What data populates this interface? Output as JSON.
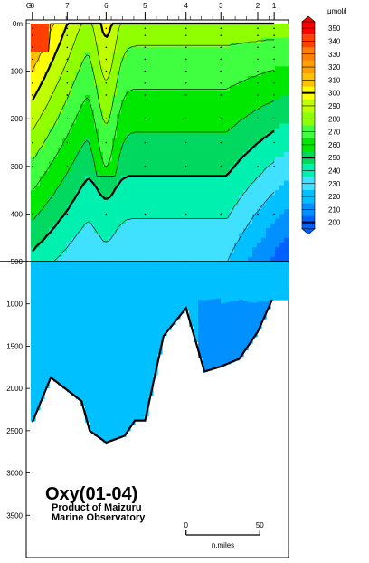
{
  "chart_data": {
    "type": "heatmap",
    "title": "Oxy(01-04)",
    "subtitle_line1": "Product of Maizuru",
    "subtitle_line2": "Marine Observatory",
    "station_axis_label": "G",
    "stations": [
      "8",
      "7",
      "6",
      "5",
      "4",
      "3",
      "2",
      "1"
    ],
    "station_km": [
      0,
      17,
      36,
      55,
      75,
      92,
      110,
      118
    ],
    "km_range": [
      -3,
      125
    ],
    "depth_axis_upper": {
      "range": [
        0,
        500
      ],
      "ticks": [
        0,
        100,
        200,
        300,
        400,
        500
      ],
      "tick_labels": [
        "0m",
        "100",
        "200",
        "300",
        "400",
        "500"
      ]
    },
    "depth_axis_lower": {
      "range": [
        500,
        4000
      ],
      "ticks": [
        1000,
        1500,
        2000,
        2500,
        3000,
        3500
      ],
      "tick_labels": [
        "1000",
        "1500",
        "2000",
        "2500",
        "3000",
        "3500"
      ]
    },
    "colorbar": {
      "unit_label": "μmol/l",
      "levels": [
        350,
        340,
        330,
        320,
        310,
        300,
        290,
        280,
        270,
        260,
        250,
        240,
        230,
        220,
        210,
        200
      ],
      "level_labels": [
        "350",
        "340",
        "330",
        "320",
        "310",
        "300",
        "290",
        "280",
        "270",
        "260",
        "250",
        "240",
        "230",
        "220",
        "210",
        "200"
      ],
      "colors": [
        "#ff0000",
        "#ff4000",
        "#ff8000",
        "#ffa000",
        "#ffc000",
        "#ffff00",
        "#c0ff00",
        "#90ff00",
        "#40ff40",
        "#00e800",
        "#00d860",
        "#00f0b0",
        "#40e0ff",
        "#00c0ff",
        "#0090ff",
        "#0060ff"
      ],
      "bold_levels": [
        300,
        250,
        200
      ]
    },
    "bottom_profile_km": [
      0,
      9,
      24,
      28,
      36,
      45,
      50,
      55,
      64,
      75,
      84,
      92,
      101,
      110,
      117
    ],
    "bottom_profile_depth": [
      2400,
      1870,
      2150,
      2500,
      2640,
      2560,
      2380,
      2380,
      1380,
      1050,
      1800,
      1740,
      1650,
      1330,
      950
    ],
    "scale_bar": {
      "start_label": "0",
      "end_label": "50",
      "unit_label": "n.miles",
      "km_start": 75,
      "km_end": 111
    }
  }
}
